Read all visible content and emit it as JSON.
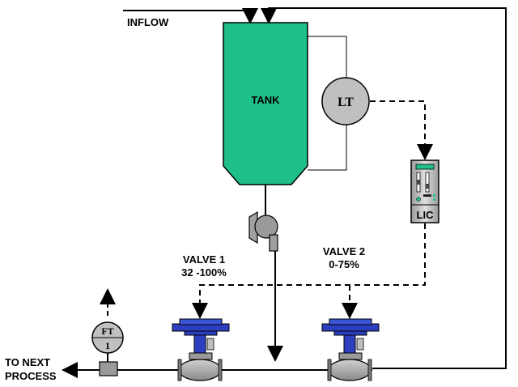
{
  "labels": {
    "inflow": "INFLOW",
    "tank": "TANK",
    "lt": "LT",
    "lic": "LIC",
    "ft_top": "FT",
    "ft_bottom": "1",
    "valve1_name": "VALVE 1",
    "valve1_range": "32 -100%",
    "valve2_name": "VALVE 2",
    "valve2_range": "0-75%",
    "outlet_line1": "TO NEXT",
    "outlet_line2": "PROCESS"
  },
  "colors": {
    "tank": "#1fbf8a",
    "instrument": "#c0c0c0",
    "valve_actuator": "#2b3fbf",
    "valve_body": "#a8a8a8",
    "pump": "#9a9a9a",
    "line": "#000000"
  }
}
